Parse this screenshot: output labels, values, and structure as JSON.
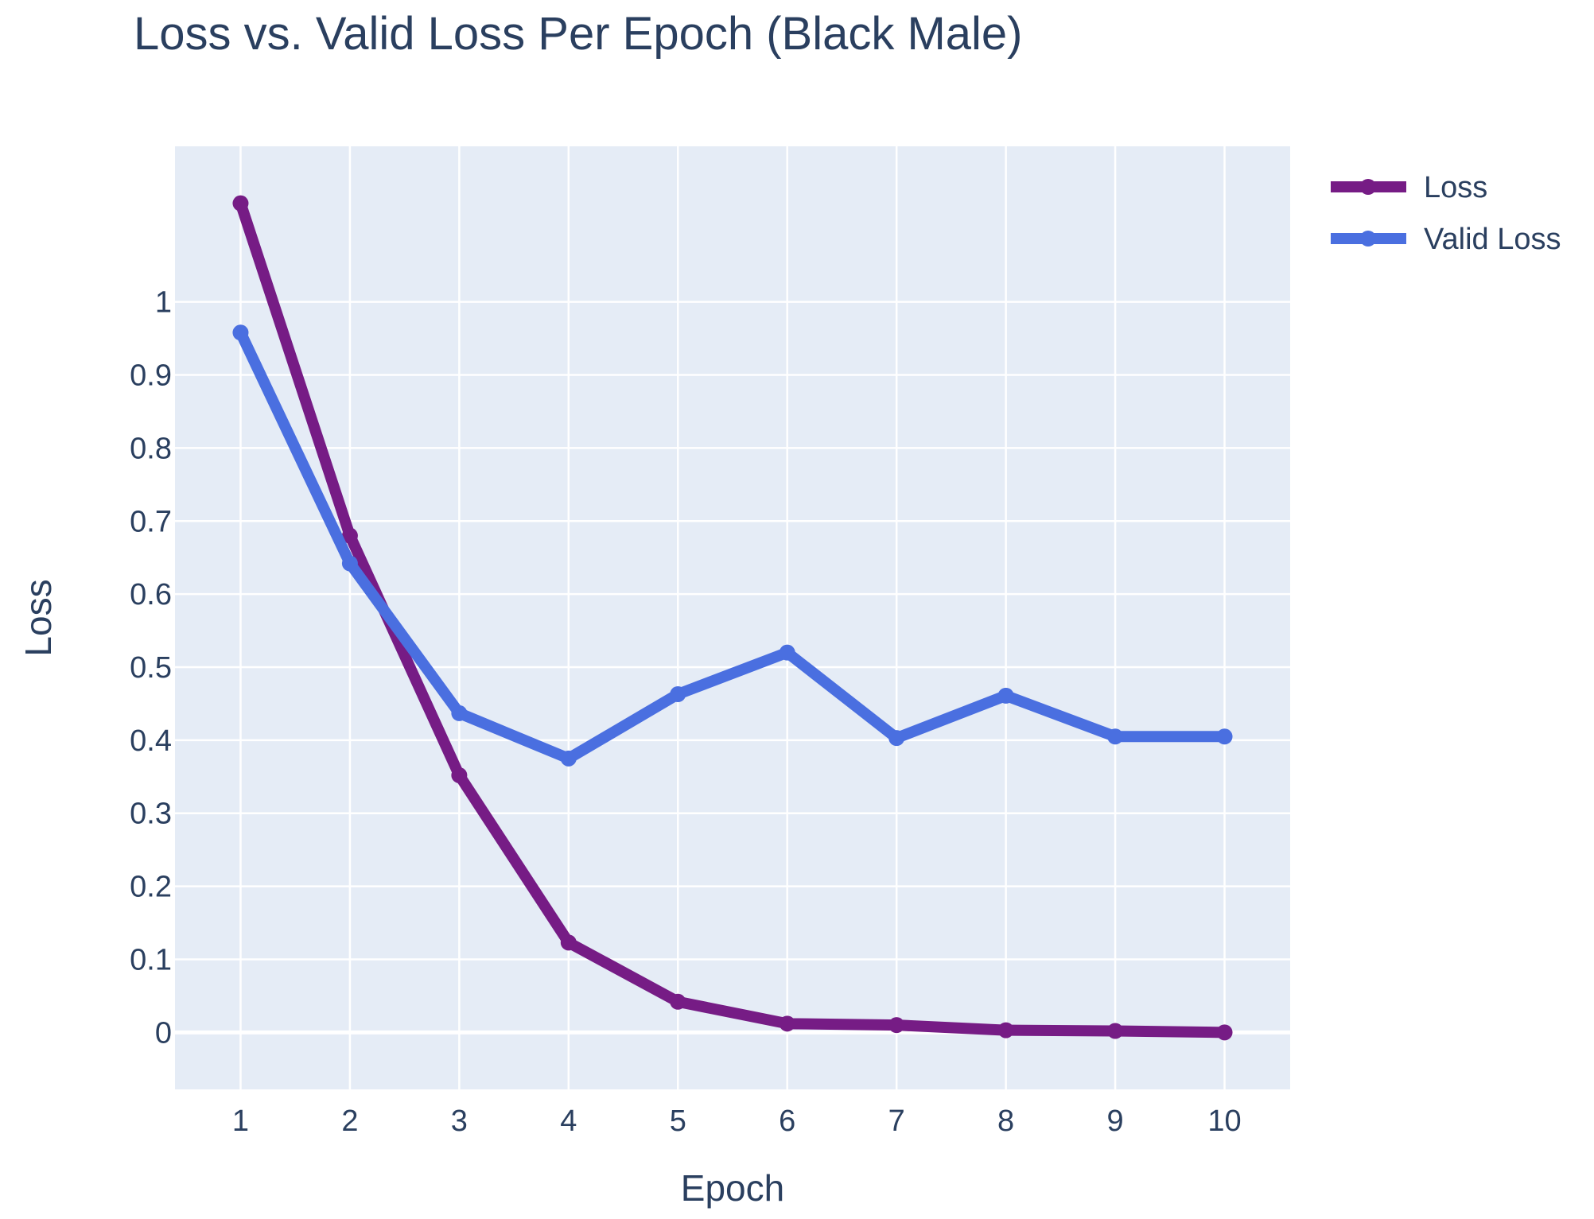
{
  "chart_data": {
    "type": "line",
    "title": "Loss vs. Valid Loss Per Epoch (Black Male)",
    "xlabel": "Epoch",
    "ylabel": "Loss",
    "x": [
      1,
      2,
      3,
      4,
      5,
      6,
      7,
      8,
      9,
      10
    ],
    "xlim": [
      0.4,
      10.6
    ],
    "ylim": [
      -0.078,
      1.213
    ],
    "x_ticks": [
      "1",
      "2",
      "3",
      "4",
      "5",
      "6",
      "7",
      "8",
      "9",
      "10"
    ],
    "y_ticks": [
      0,
      0.1,
      0.2,
      0.3,
      0.4,
      0.5,
      0.6,
      0.7,
      0.8,
      0.9,
      1
    ],
    "y_tick_labels": [
      "0",
      "0.1",
      "0.2",
      "0.3",
      "0.4",
      "0.5",
      "0.6",
      "0.7",
      "0.8",
      "0.9",
      "1"
    ],
    "grid": true,
    "legend_position": "top-right",
    "series": [
      {
        "name": "Loss",
        "color": "#761c85",
        "values": [
          1.135,
          0.68,
          0.352,
          0.123,
          0.042,
          0.012,
          0.01,
          0.003,
          0.002,
          0.0
        ]
      },
      {
        "name": "Valid Loss",
        "color": "#4a6fe0",
        "values": [
          0.958,
          0.642,
          0.437,
          0.375,
          0.463,
          0.52,
          0.403,
          0.461,
          0.405,
          0.405
        ]
      }
    ],
    "plot_background": "#e5ecf6",
    "grid_color": "#ffffff",
    "text_color": "#2a3f5f"
  }
}
